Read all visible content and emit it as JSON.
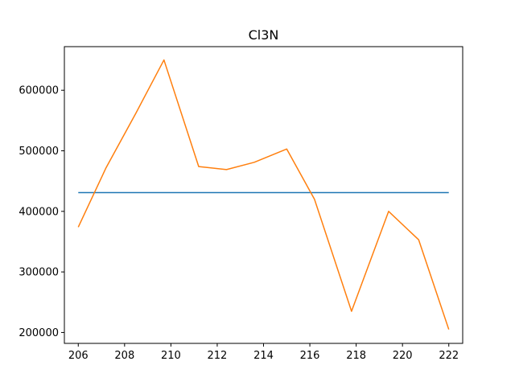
{
  "chart_data": {
    "type": "line",
    "title": "Cl3N",
    "xlabel": "",
    "ylabel": "",
    "xlim": [
      205.4,
      222.6
    ],
    "ylim": [
      182000,
      672000
    ],
    "xticks": [
      206,
      208,
      210,
      212,
      214,
      216,
      218,
      220,
      222
    ],
    "yticks": [
      200000,
      300000,
      400000,
      500000,
      600000
    ],
    "grid": false,
    "series": [
      {
        "color": "#1f77b4",
        "x": [
          206,
          222
        ],
        "y": [
          431000,
          431000
        ]
      },
      {
        "color": "#ff7f0e",
        "x": [
          206,
          207.2,
          208.5,
          209.7,
          211.2,
          212.4,
          213.6,
          215.0,
          216.2,
          217.8,
          219.4,
          220.7,
          222
        ],
        "y": [
          374000,
          472000,
          563000,
          650000,
          474000,
          469000,
          481000,
          503000,
          420000,
          235000,
          400000,
          353000,
          205000
        ]
      }
    ]
  }
}
